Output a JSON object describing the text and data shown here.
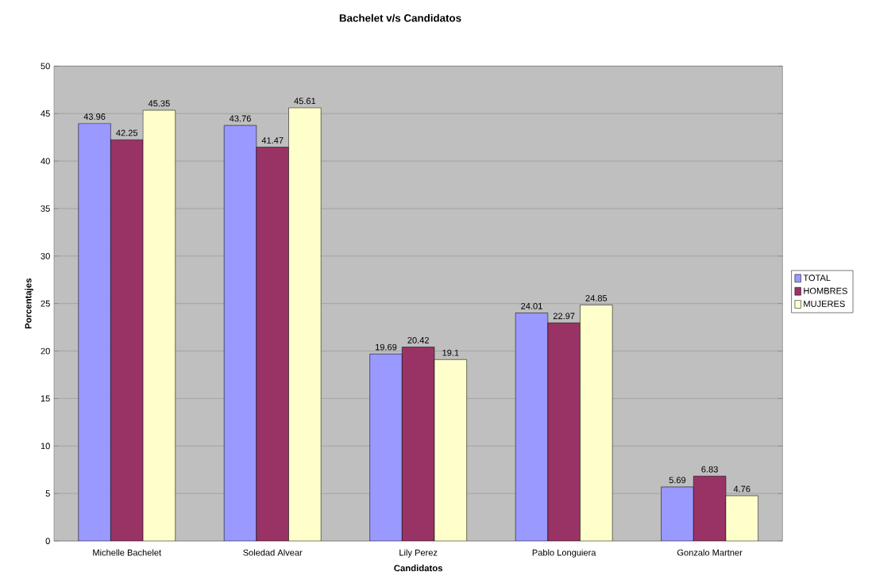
{
  "chart_data": {
    "type": "bar",
    "title": "Bachelet v/s Candidatos",
    "xlabel": "Candidatos",
    "ylabel": "Porcentajes",
    "categories": [
      "Michelle Bachelet",
      "Soledad Alvear",
      "Lily Perez",
      "Pablo Longuiera",
      "Gonzalo Martner"
    ],
    "series": [
      {
        "name": "TOTAL",
        "color": "#9999ff",
        "values": [
          43.96,
          43.76,
          19.69,
          24.01,
          5.69
        ]
      },
      {
        "name": "HOMBRES",
        "color": "#993366",
        "values": [
          42.25,
          41.47,
          20.42,
          22.97,
          6.83
        ]
      },
      {
        "name": "MUJERES",
        "color": "#ffffcc",
        "values": [
          45.35,
          45.61,
          19.1,
          24.85,
          4.76
        ]
      }
    ],
    "ylim": [
      0,
      50
    ],
    "yticks": [
      0,
      5,
      10,
      15,
      20,
      25,
      30,
      35,
      40,
      45,
      50
    ],
    "grid": "y",
    "legend": "right",
    "data_labels": true
  }
}
